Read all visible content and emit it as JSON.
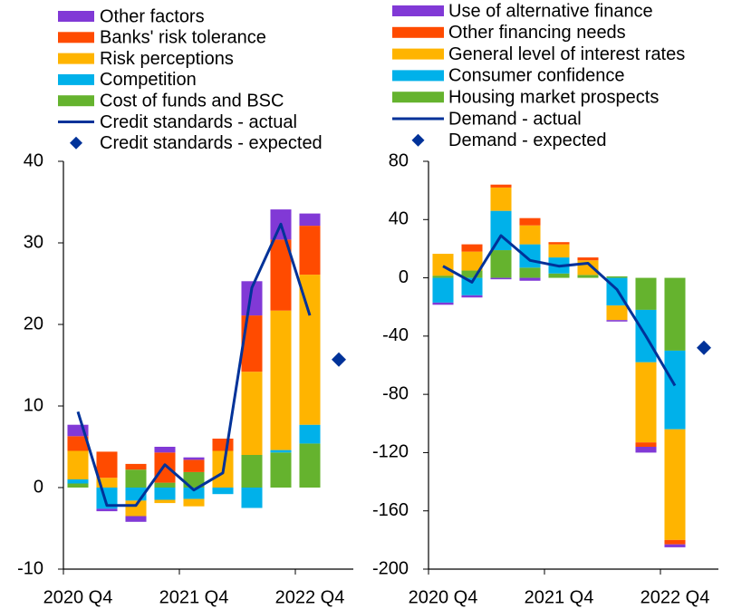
{
  "chart_data": [
    {
      "type": "bar",
      "stacked": true,
      "categories": [
        "2020 Q4",
        null,
        null,
        null,
        "2021 Q4",
        null,
        null,
        null,
        "2022 Q4",
        null
      ],
      "ylim": [
        -10,
        40
      ],
      "yticks": [
        40,
        30,
        20,
        10,
        0,
        -10
      ],
      "series": [
        {
          "name": "Other factors",
          "type": "bar",
          "color": "#8139d6",
          "values": [
            1.4,
            -0.3,
            -0.7,
            0.7,
            0.3,
            0,
            4.2,
            3.7,
            1.5,
            null
          ]
        },
        {
          "name": "Banks' risk tolerance",
          "type": "bar",
          "color": "#ff4b00",
          "values": [
            1.8,
            3.2,
            0.7,
            3.7,
            1.5,
            1.5,
            6.9,
            8.7,
            6.0,
            null
          ]
        },
        {
          "name": "Risk perceptions",
          "type": "bar",
          "color": "#ffb400",
          "values": [
            3.5,
            1.2,
            -1.9,
            -0.4,
            -0.9,
            4.5,
            10.2,
            17.1,
            18.4,
            null
          ]
        },
        {
          "name": "Competition",
          "type": "bar",
          "color": "#00b1ea",
          "values": [
            0.5,
            -2.6,
            -1.6,
            -1.5,
            -1.4,
            -0.8,
            -2.5,
            0.3,
            2.3,
            null
          ]
        },
        {
          "name": "Cost of funds and BSC",
          "type": "bar",
          "color": "#65b32e",
          "values": [
            0.5,
            0,
            2.2,
            0.6,
            1.9,
            0,
            4.0,
            4.3,
            5.4,
            null
          ]
        },
        {
          "name": "Credit standards - actual",
          "type": "line",
          "color": "#003299",
          "values": [
            9.3,
            -2.2,
            -2.2,
            2.8,
            -0.3,
            1.8,
            24.5,
            32.3,
            21.1,
            null
          ]
        },
        {
          "name": "Credit standards - expected",
          "type": "scatter",
          "color": "#003299",
          "values": [
            null,
            null,
            null,
            null,
            null,
            null,
            null,
            null,
            null,
            15.7
          ]
        }
      ]
    },
    {
      "type": "bar",
      "stacked": true,
      "categories": [
        "2020 Q4",
        null,
        null,
        null,
        "2021 Q4",
        null,
        null,
        null,
        "2022 Q4",
        null
      ],
      "ylim": [
        -200,
        80
      ],
      "yticks": [
        80,
        40,
        0,
        -40,
        -80,
        -120,
        -160,
        -200
      ],
      "series": [
        {
          "name": "Use of alternative finance",
          "type": "bar",
          "color": "#8139d6",
          "values": [
            -1.5,
            -1.5,
            -1,
            -2,
            0,
            0,
            -1,
            -4,
            -2,
            null
          ]
        },
        {
          "name": "Other financing needs",
          "type": "bar",
          "color": "#ff4b00",
          "values": [
            0,
            5,
            2,
            5,
            1.5,
            2,
            0,
            -3,
            -3,
            null
          ]
        },
        {
          "name": "General level of interest rates",
          "type": "bar",
          "color": "#ffb400",
          "values": [
            15,
            13,
            16,
            13,
            9,
            10,
            -10,
            -55,
            -76,
            null
          ]
        },
        {
          "name": "Consumer confidence",
          "type": "bar",
          "color": "#00b1ea",
          "values": [
            -17,
            -12,
            27,
            16,
            11,
            0,
            -19,
            -36,
            -54,
            null
          ]
        },
        {
          "name": "Housing market prospects",
          "type": "bar",
          "color": "#65b32e",
          "values": [
            1.5,
            5,
            19,
            7,
            3,
            2,
            1,
            -22,
            -50,
            null
          ]
        },
        {
          "name": "Demand - actual",
          "type": "line",
          "color": "#003299",
          "values": [
            8,
            -3,
            29,
            12,
            8,
            10,
            -8,
            -40,
            -74,
            null
          ]
        },
        {
          "name": "Demand - expected",
          "type": "scatter",
          "color": "#003299",
          "values": [
            null,
            null,
            null,
            null,
            null,
            null,
            null,
            null,
            null,
            -48
          ]
        }
      ]
    }
  ]
}
